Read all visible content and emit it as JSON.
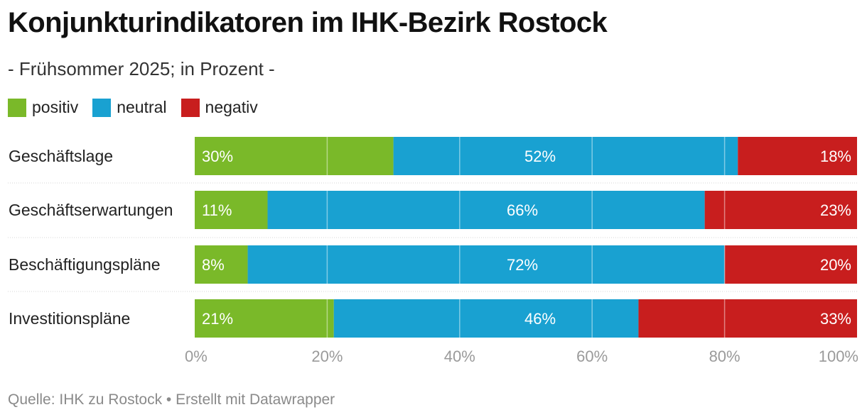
{
  "header": {
    "title": "Konjunkturindikatoren im IHK-Bezirk Rostock",
    "subtitle": "- Frühsommer 2025; in Prozent -"
  },
  "legend": [
    {
      "label": "positiv",
      "color": "#7ab929"
    },
    {
      "label": "neutral",
      "color": "#19a1d1"
    },
    {
      "label": "negativ",
      "color": "#c81e1e"
    }
  ],
  "chart_data": {
    "type": "bar",
    "orientation": "horizontal",
    "stacked": true,
    "categories": [
      "Geschäftslage",
      "Geschäftserwartungen",
      "Beschäftigungspläne",
      "Investitionspläne"
    ],
    "series": [
      {
        "name": "positiv",
        "color": "#7ab929",
        "values": [
          30,
          11,
          8,
          21
        ],
        "labels": [
          "30%",
          "11%",
          "8%",
          "21%"
        ]
      },
      {
        "name": "neutral",
        "color": "#19a1d1",
        "values": [
          52,
          66,
          72,
          46
        ],
        "labels": [
          "52%",
          "66%",
          "72%",
          "46%"
        ]
      },
      {
        "name": "negativ",
        "color": "#c81e1e",
        "values": [
          18,
          23,
          20,
          33
        ],
        "labels": [
          "18%",
          "23%",
          "20%",
          "33%"
        ]
      }
    ],
    "xlim": [
      0,
      100
    ],
    "xticks": [
      0,
      20,
      40,
      60,
      80,
      100
    ],
    "xtick_labels": [
      "0%",
      "20%",
      "40%",
      "60%",
      "80%",
      "100%"
    ],
    "grid": true,
    "legend_position": "top-left"
  },
  "footer": {
    "source": "Quelle: IHK zu Rostock • Erstellt mit Datawrapper"
  }
}
